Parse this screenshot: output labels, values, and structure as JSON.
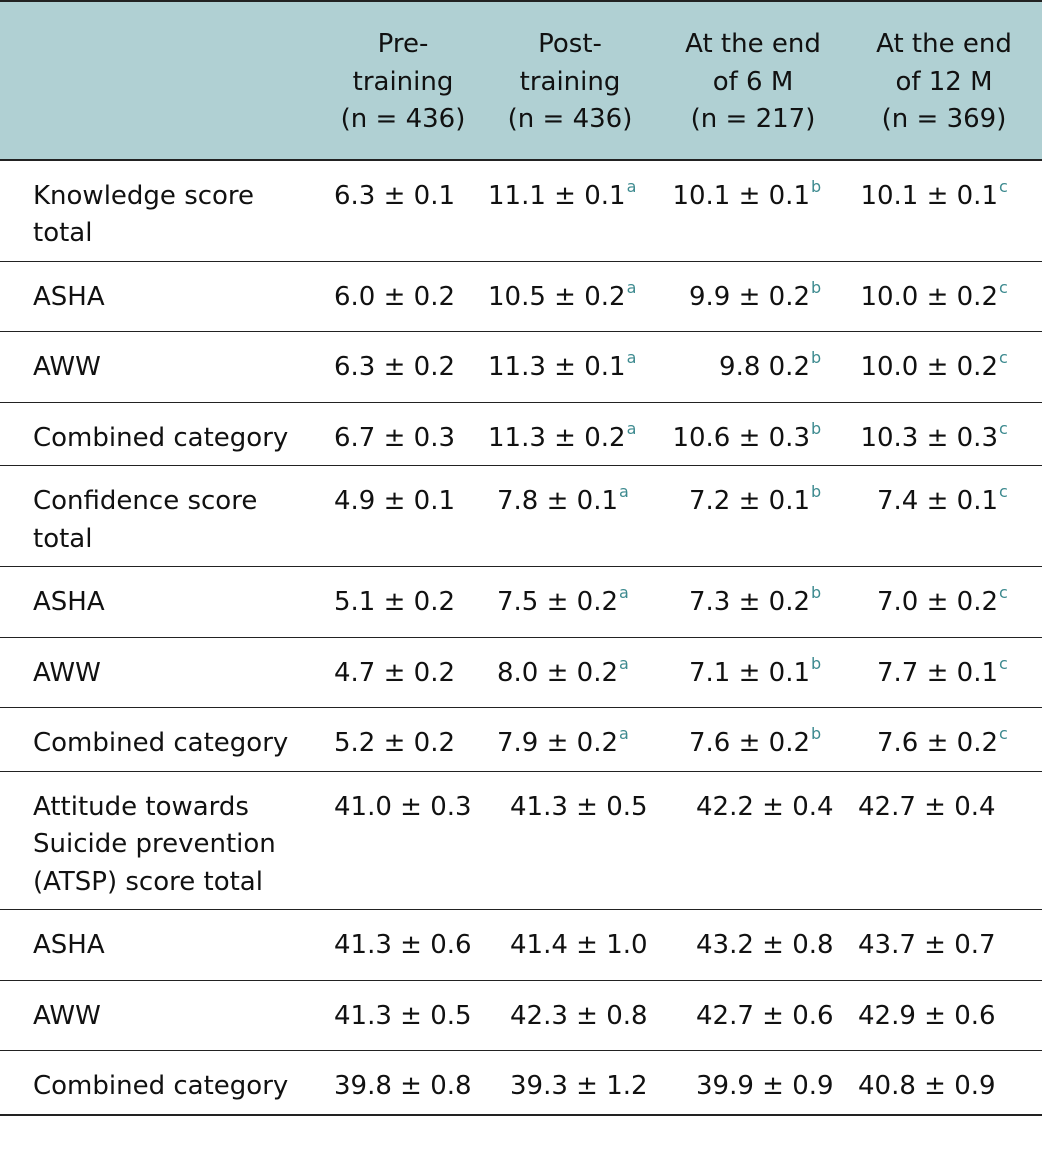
{
  "header": {
    "blank": "",
    "col1": [
      "Pre-",
      "training",
      "(n = 436)"
    ],
    "col2": [
      "Post-",
      "training",
      "(n = 436)"
    ],
    "col3": [
      "At the end",
      "of 6 M",
      "(n = 217)"
    ],
    "col4": [
      "At the end",
      "of 12 M",
      "(n = 369)"
    ]
  },
  "rows": [
    {
      "label": "Knowledge score total",
      "v1": "6.3 ± 0.1",
      "v2": "11.1 ± 0.1",
      "s2": "a",
      "v3": "10.1 ± 0.1",
      "s3": "b",
      "v4": "10.1 ± 0.1",
      "s4": "c"
    },
    {
      "label": "ASHA",
      "v1": "6.0 ± 0.2",
      "v2": "10.5 ± 0.2",
      "s2": "a",
      "v3": "9.9 ± 0.2",
      "s3": "b",
      "v4": "10.0 ± 0.2",
      "s4": "c"
    },
    {
      "label": "AWW",
      "v1": "6.3 ± 0.2",
      "v2": "11.3 ± 0.1",
      "s2": "a",
      "v3": "9.8 0.2",
      "s3": "b",
      "v4": "10.0 ± 0.2",
      "s4": "c"
    },
    {
      "label": "Combined category",
      "v1": "6.7 ± 0.3",
      "v2": "11.3 ± 0.2",
      "s2": "a",
      "v3": "10.6 ± 0.3",
      "s3": "b",
      "v4": "10.3 ± 0.3",
      "s4": "c"
    },
    {
      "label": "Confidence score total",
      "v1": "4.9 ± 0.1",
      "v2": "7.8 ± 0.1",
      "s2": "a",
      "v3": "7.2 ± 0.1",
      "s3": "b",
      "v4": "7.4 ± 0.1",
      "s4": "c"
    },
    {
      "label": "ASHA",
      "v1": "5.1 ± 0.2",
      "v2": "7.5 ± 0.2",
      "s2": "a",
      "v3": "7.3 ± 0.2",
      "s3": "b",
      "v4": "7.0 ± 0.2",
      "s4": "c"
    },
    {
      "label": "AWW",
      "v1": "4.7 ± 0.2",
      "v2": "8.0 ± 0.2",
      "s2": "a",
      "v3": "7.1 ± 0.1",
      "s3": "b",
      "v4": "7.7 ± 0.1",
      "s4": "c"
    },
    {
      "label": "Combined category",
      "v1": "5.2 ± 0.2",
      "v2": "7.9 ± 0.2",
      "s2": "a",
      "v3": "7.6 ± 0.2",
      "s3": "b",
      "v4": "7.6 ± 0.2",
      "s4": "c"
    },
    {
      "label": "Attitude towards Suicide prevention (ATSP) score total",
      "v1": "41.0 ± 0.3",
      "v2": "41.3 ± 0.5",
      "v3": "42.2 ± 0.4",
      "v4": "42.7 ± 0.4"
    },
    {
      "label": "ASHA",
      "v1": "41.3 ± 0.6",
      "v2": "41.4 ± 1.0",
      "v3": "43.2 ± 0.8",
      "v4": "43.7 ± 0.7"
    },
    {
      "label": "AWW",
      "v1": "41.3 ± 0.5",
      "v2": "42.3 ± 0.8",
      "v3": "42.7 ± 0.6",
      "v4": "42.9 ± 0.6"
    },
    {
      "label": "Combined category",
      "v1": "39.8 ± 0.8",
      "v2": "39.3 ± 1.2",
      "v3": "39.9 ± 0.9",
      "v4": "40.8 ± 0.9"
    }
  ]
}
